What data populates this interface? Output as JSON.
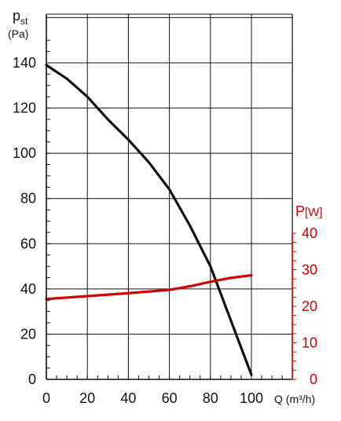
{
  "chart_data": {
    "type": "line",
    "x_axis": {
      "label": "Q (m³/h)",
      "ticks": [
        0,
        20,
        40,
        60,
        80,
        100
      ],
      "range": [
        0,
        108
      ]
    },
    "y_axis_left": {
      "label_main": "p",
      "label_sub": "st",
      "unit": "(Pa)",
      "ticks": [
        0,
        20,
        40,
        60,
        80,
        100,
        120,
        140
      ],
      "range": [
        0,
        148
      ]
    },
    "y_axis_right": {
      "label_main": "P",
      "label_unit": "[W]",
      "ticks": [
        0,
        10,
        20,
        30,
        40
      ],
      "range": [
        0,
        40
      ]
    },
    "grid": true,
    "series": [
      {
        "axis": "left",
        "color": "#111111",
        "points": [
          [
            0,
            139
          ],
          [
            10,
            133
          ],
          [
            20,
            125
          ],
          [
            30,
            115
          ],
          [
            40,
            106
          ],
          [
            50,
            96
          ],
          [
            60,
            84
          ],
          [
            70,
            68
          ],
          [
            80,
            50
          ],
          [
            90,
            26
          ],
          [
            100,
            2
          ]
        ]
      },
      {
        "axis": "right",
        "color": "#d40000",
        "points": [
          [
            0,
            22
          ],
          [
            20,
            22.8
          ],
          [
            40,
            23.6
          ],
          [
            60,
            24.5
          ],
          [
            70,
            25.5
          ],
          [
            80,
            26.7
          ],
          [
            90,
            27.8
          ],
          [
            100,
            28.5
          ]
        ]
      }
    ]
  }
}
